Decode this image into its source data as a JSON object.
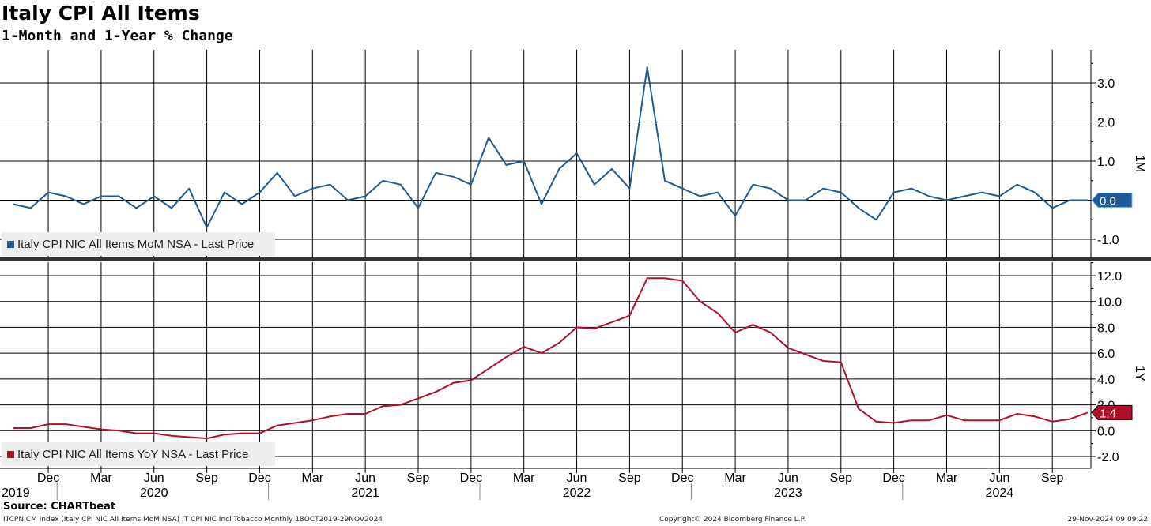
{
  "header": {
    "title": "Italy CPI All Items",
    "subtitle": "1-Month and 1-Year % Change"
  },
  "footer": {
    "source": "Source: CHARTbeat",
    "left": "ITCPNICM Index (Italy CPI NIC All Items MoM NSA) IT CPI NIC Incl Tobacco  Monthly 18OCT2019-29NOV2024",
    "center": "Copyright© 2024 Bloomberg Finance L.P.",
    "right": "29-Nov-2024 09:09:22"
  },
  "colors": {
    "mom_line": "#1f5a96",
    "yoy_line": "#b0102a",
    "grid": "#000000",
    "legend_bg": "#eeeeee"
  },
  "chart_data": [
    {
      "type": "line",
      "panel_label": "1M",
      "legend": "Italy CPI NIC All Items MoM NSA - Last Price",
      "last_value_label": "0.0",
      "x_start": "2019-10",
      "x_end": "2024-10",
      "ylim": [
        -1.5,
        3.8
      ],
      "yticks": [
        3.0,
        2.0,
        1.0,
        0.0,
        -1.0
      ],
      "ytick_labels": [
        "3.0",
        "2.0",
        "1.0",
        "0.0",
        "-1.0"
      ],
      "grid": true,
      "series": [
        {
          "values": [
            -0.1,
            -0.2,
            0.2,
            0.1,
            -0.1,
            0.1,
            0.1,
            -0.2,
            0.1,
            -0.2,
            0.3,
            -0.7,
            0.2,
            -0.1,
            0.2,
            0.7,
            0.1,
            0.3,
            0.4,
            0.0,
            0.1,
            0.5,
            0.4,
            -0.2,
            0.7,
            0.6,
            0.4,
            1.6,
            0.9,
            1.0,
            -0.1,
            0.8,
            1.2,
            0.4,
            0.8,
            0.3,
            3.4,
            0.5,
            0.3,
            0.1,
            0.2,
            -0.4,
            0.4,
            0.3,
            0.0,
            0.0,
            0.3,
            0.2,
            -0.2,
            -0.5,
            0.2,
            0.3,
            0.1,
            0.0,
            0.1,
            0.2,
            0.1,
            0.4,
            0.2,
            -0.2,
            0.0,
            0.0
          ]
        }
      ]
    },
    {
      "type": "line",
      "panel_label": "1Y",
      "legend": "Italy CPI NIC All Items YoY NSA - Last Price",
      "last_value_label": "1.4",
      "x_start": "2019-10",
      "x_end": "2024-10",
      "ylim": [
        -2.8,
        12.5
      ],
      "yticks": [
        12.0,
        10.0,
        8.0,
        6.0,
        4.0,
        2.0,
        0.0,
        -2.0
      ],
      "ytick_labels": [
        "12.0",
        "10.0",
        "8.0",
        "6.0",
        "4.0",
        "2.0",
        "0.0",
        "-2.0"
      ],
      "grid": true,
      "series": [
        {
          "values": [
            0.2,
            0.2,
            0.5,
            0.5,
            0.3,
            0.1,
            0.0,
            -0.2,
            -0.2,
            -0.4,
            -0.5,
            -0.6,
            -0.3,
            -0.2,
            -0.2,
            0.4,
            0.6,
            0.8,
            1.1,
            1.3,
            1.3,
            1.9,
            2.0,
            2.5,
            3.0,
            3.7,
            3.9,
            4.8,
            5.7,
            6.5,
            6.0,
            6.8,
            8.0,
            7.9,
            8.4,
            8.9,
            11.8,
            11.8,
            11.6,
            10.0,
            9.1,
            7.6,
            8.2,
            7.6,
            6.4,
            5.9,
            5.4,
            5.3,
            1.7,
            0.7,
            0.6,
            0.8,
            0.8,
            1.2,
            0.8,
            0.8,
            0.8,
            1.3,
            1.1,
            0.7,
            0.9,
            1.4
          ]
        }
      ]
    }
  ],
  "x_axis": {
    "month_ticks": [
      {
        "date": "2019-12",
        "label": "Dec"
      },
      {
        "date": "2020-03",
        "label": "Mar"
      },
      {
        "date": "2020-06",
        "label": "Jun"
      },
      {
        "date": "2020-09",
        "label": "Sep"
      },
      {
        "date": "2020-12",
        "label": "Dec"
      },
      {
        "date": "2021-03",
        "label": "Mar"
      },
      {
        "date": "2021-06",
        "label": "Jun"
      },
      {
        "date": "2021-09",
        "label": "Sep"
      },
      {
        "date": "2021-12",
        "label": "Dec"
      },
      {
        "date": "2022-03",
        "label": "Mar"
      },
      {
        "date": "2022-06",
        "label": "Jun"
      },
      {
        "date": "2022-09",
        "label": "Sep"
      },
      {
        "date": "2022-12",
        "label": "Dec"
      },
      {
        "date": "2023-03",
        "label": "Mar"
      },
      {
        "date": "2023-06",
        "label": "Jun"
      },
      {
        "date": "2023-09",
        "label": "Sep"
      },
      {
        "date": "2023-12",
        "label": "Dec"
      },
      {
        "date": "2024-03",
        "label": "Mar"
      },
      {
        "date": "2024-06",
        "label": "Jun"
      },
      {
        "date": "2024-09",
        "label": "Sep"
      }
    ],
    "year_labels": [
      {
        "date": "2019-10",
        "label": "2019"
      },
      {
        "date": "2020-06",
        "label": "2020"
      },
      {
        "date": "2021-06",
        "label": "2021"
      },
      {
        "date": "2022-06",
        "label": "2022"
      },
      {
        "date": "2023-06",
        "label": "2023"
      },
      {
        "date": "2024-06",
        "label": "2024"
      }
    ],
    "year_boundaries": [
      "2020-01",
      "2021-01",
      "2022-01",
      "2023-01",
      "2024-01"
    ]
  }
}
